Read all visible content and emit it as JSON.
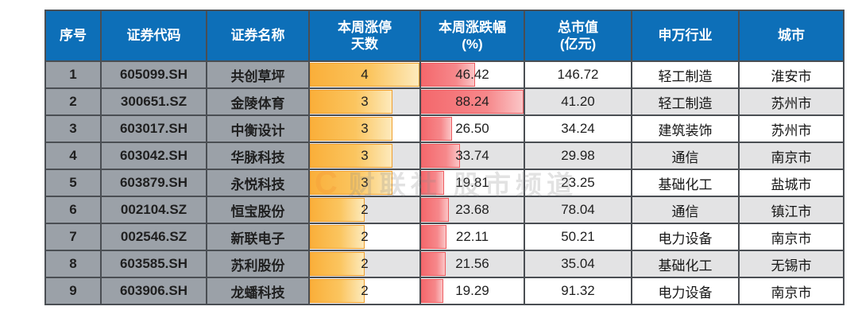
{
  "colors": {
    "header_bg": "#0d6fb8",
    "id_col_bg": "#9ba1a8",
    "row_alt_bg": "#e3e3e4",
    "border_color": "#4a4e53",
    "limit_up_bar": "#faaf3a",
    "change_pct_bar": "#f4686c"
  },
  "watermark": {
    "logo": "C",
    "text": "财联社 股市频道"
  },
  "table": {
    "columns": [
      {
        "key": "index",
        "label": "序号"
      },
      {
        "key": "code",
        "label": "证券代码"
      },
      {
        "key": "name",
        "label": "证券名称"
      },
      {
        "key": "limit_up_days",
        "label": "本周涨停\n天数"
      },
      {
        "key": "weekly_change_pct",
        "label": "本周涨跌幅\n(%)"
      },
      {
        "key": "market_cap",
        "label": "总市值\n(亿元)"
      },
      {
        "key": "industry",
        "label": "申万行业"
      },
      {
        "key": "city",
        "label": "城市"
      }
    ],
    "rows": [
      {
        "index": "1",
        "code": "605099.SH",
        "name": "共创草坪",
        "limit_up_days": "4",
        "weekly_change_pct": "46.42",
        "market_cap": "146.72",
        "industry": "轻工制造",
        "city": "淮安市"
      },
      {
        "index": "2",
        "code": "300651.SZ",
        "name": "金陵体育",
        "limit_up_days": "3",
        "weekly_change_pct": "88.24",
        "market_cap": "41.20",
        "industry": "轻工制造",
        "city": "苏州市"
      },
      {
        "index": "3",
        "code": "603017.SH",
        "name": "中衡设计",
        "limit_up_days": "3",
        "weekly_change_pct": "26.50",
        "market_cap": "34.24",
        "industry": "建筑装饰",
        "city": "苏州市"
      },
      {
        "index": "4",
        "code": "603042.SH",
        "name": "华脉科技",
        "limit_up_days": "3",
        "weekly_change_pct": "33.74",
        "market_cap": "29.98",
        "industry": "通信",
        "city": "南京市"
      },
      {
        "index": "5",
        "code": "603879.SH",
        "name": "永悦科技",
        "limit_up_days": "3",
        "weekly_change_pct": "19.81",
        "market_cap": "23.25",
        "industry": "基础化工",
        "city": "盐城市"
      },
      {
        "index": "6",
        "code": "002104.SZ",
        "name": "恒宝股份",
        "limit_up_days": "2",
        "weekly_change_pct": "23.68",
        "market_cap": "78.04",
        "industry": "通信",
        "city": "镇江市"
      },
      {
        "index": "7",
        "code": "002546.SZ",
        "name": "新联电子",
        "limit_up_days": "2",
        "weekly_change_pct": "22.11",
        "market_cap": "50.21",
        "industry": "电力设备",
        "city": "南京市"
      },
      {
        "index": "8",
        "code": "603585.SH",
        "name": "苏利股份",
        "limit_up_days": "2",
        "weekly_change_pct": "21.56",
        "market_cap": "35.04",
        "industry": "基础化工",
        "city": "无锡市"
      },
      {
        "index": "9",
        "code": "603906.SH",
        "name": "龙蟠科技",
        "limit_up_days": "2",
        "weekly_change_pct": "19.29",
        "market_cap": "91.32",
        "industry": "电力设备",
        "city": "南京市"
      }
    ]
  },
  "chart_data": {
    "type": "table",
    "title": "",
    "columns": [
      "序号",
      "证券代码",
      "证券名称",
      "本周涨停天数",
      "本周涨跌幅(%)",
      "总市值(亿元)",
      "申万行业",
      "城市"
    ],
    "data_bars": [
      {
        "column": "本周涨停天数",
        "color": "orange",
        "max": 4
      },
      {
        "column": "本周涨跌幅(%)",
        "color": "red",
        "max": 88.24
      }
    ]
  }
}
